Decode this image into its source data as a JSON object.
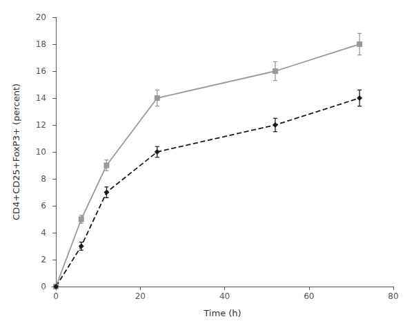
{
  "chart_data": {
    "type": "line",
    "xlabel": "Time (h)",
    "ylabel": "CD4+CD25+FoxP3+ (percent)",
    "x": [
      0,
      6,
      12,
      24,
      52,
      72
    ],
    "series": [
      {
        "color": "#999999",
        "marker": "square",
        "line_style": "solid",
        "values": [
          0,
          5,
          9,
          14,
          16,
          18
        ],
        "yerr": [
          0,
          0.3,
          0.4,
          0.6,
          0.7,
          0.8
        ]
      },
      {
        "color": "#1a1a1a",
        "marker": "diamond",
        "line_style": "dashed",
        "values": [
          0,
          3,
          7,
          10,
          12,
          14
        ],
        "yerr": [
          0,
          0.3,
          0.4,
          0.4,
          0.5,
          0.6
        ]
      }
    ],
    "xlim": [
      -1,
      80
    ],
    "ylim": [
      0,
      20
    ],
    "xticks": [
      0,
      20,
      40,
      60,
      80
    ],
    "yticks": [
      0,
      2,
      4,
      6,
      8,
      10,
      12,
      14,
      16,
      18,
      20
    ],
    "grid": false
  }
}
